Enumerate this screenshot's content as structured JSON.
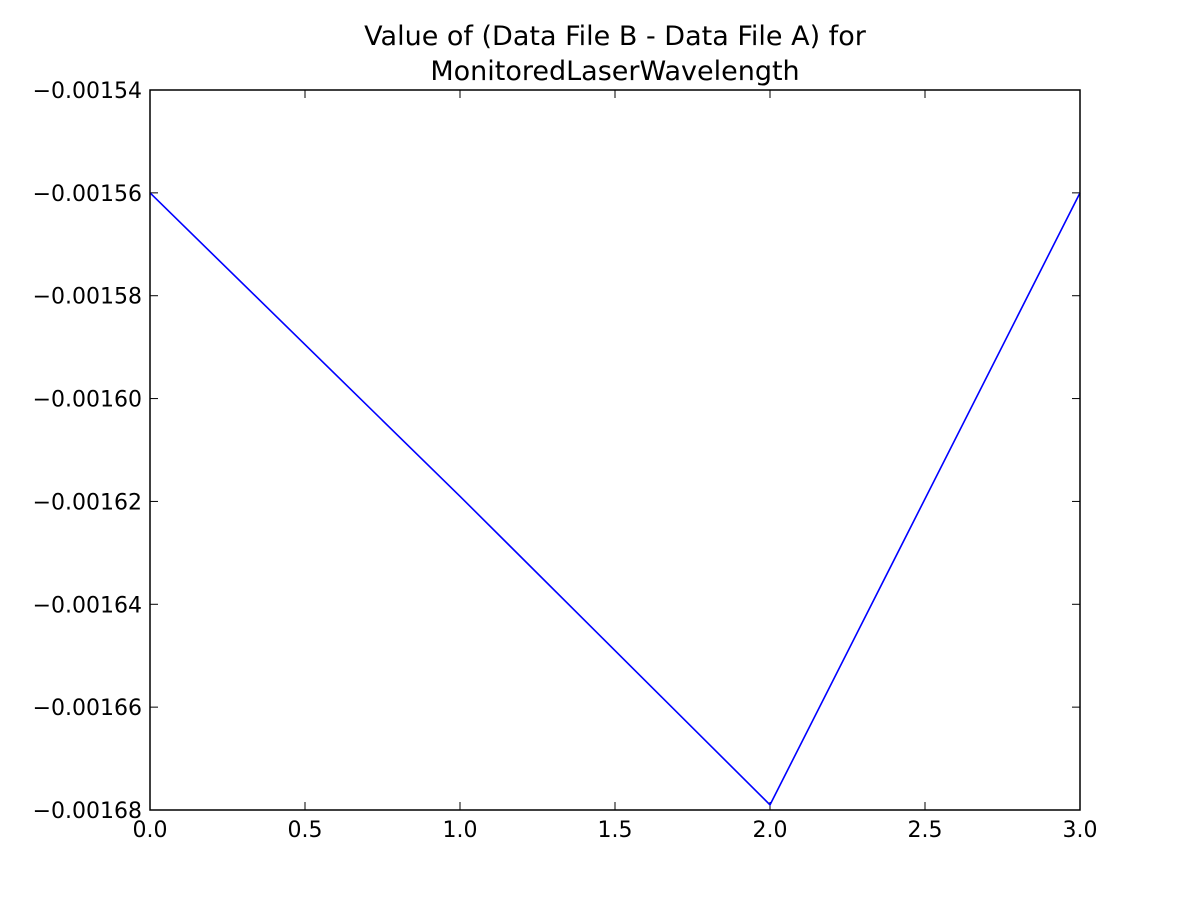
{
  "chart_data": {
    "type": "line",
    "title": [
      "Value of (Data File B - Data File A) for",
      "MonitoredLaserWavelength"
    ],
    "x": [
      0,
      1,
      2,
      3
    ],
    "series": [
      {
        "color": "#0000ff",
        "values": [
          -0.00156,
          -0.001619,
          -0.001679,
          -0.00156
        ]
      }
    ],
    "xlim": [
      0,
      3
    ],
    "xticks": [
      {
        "value": 0,
        "label": "0.0"
      },
      {
        "value": 0.5,
        "label": "0.5"
      },
      {
        "value": 1,
        "label": "1.0"
      },
      {
        "value": 1.5,
        "label": "1.5"
      },
      {
        "value": 2,
        "label": "2.0"
      },
      {
        "value": 2.5,
        "label": "2.5"
      },
      {
        "value": 3,
        "label": "3.0"
      }
    ],
    "ylim": [
      -0.00168,
      -0.00154
    ],
    "yticks": [
      {
        "value": -0.00168,
        "label": "−0.00168"
      },
      {
        "value": -0.00166,
        "label": "−0.00166"
      },
      {
        "value": -0.00164,
        "label": "−0.00164"
      },
      {
        "value": -0.00162,
        "label": "−0.00162"
      },
      {
        "value": -0.0016,
        "label": "−0.00160"
      },
      {
        "value": -0.00158,
        "label": "−0.00158"
      },
      {
        "value": -0.00156,
        "label": "−0.00156"
      },
      {
        "value": -0.00154,
        "label": "−0.00154"
      }
    ],
    "grid": false
  }
}
